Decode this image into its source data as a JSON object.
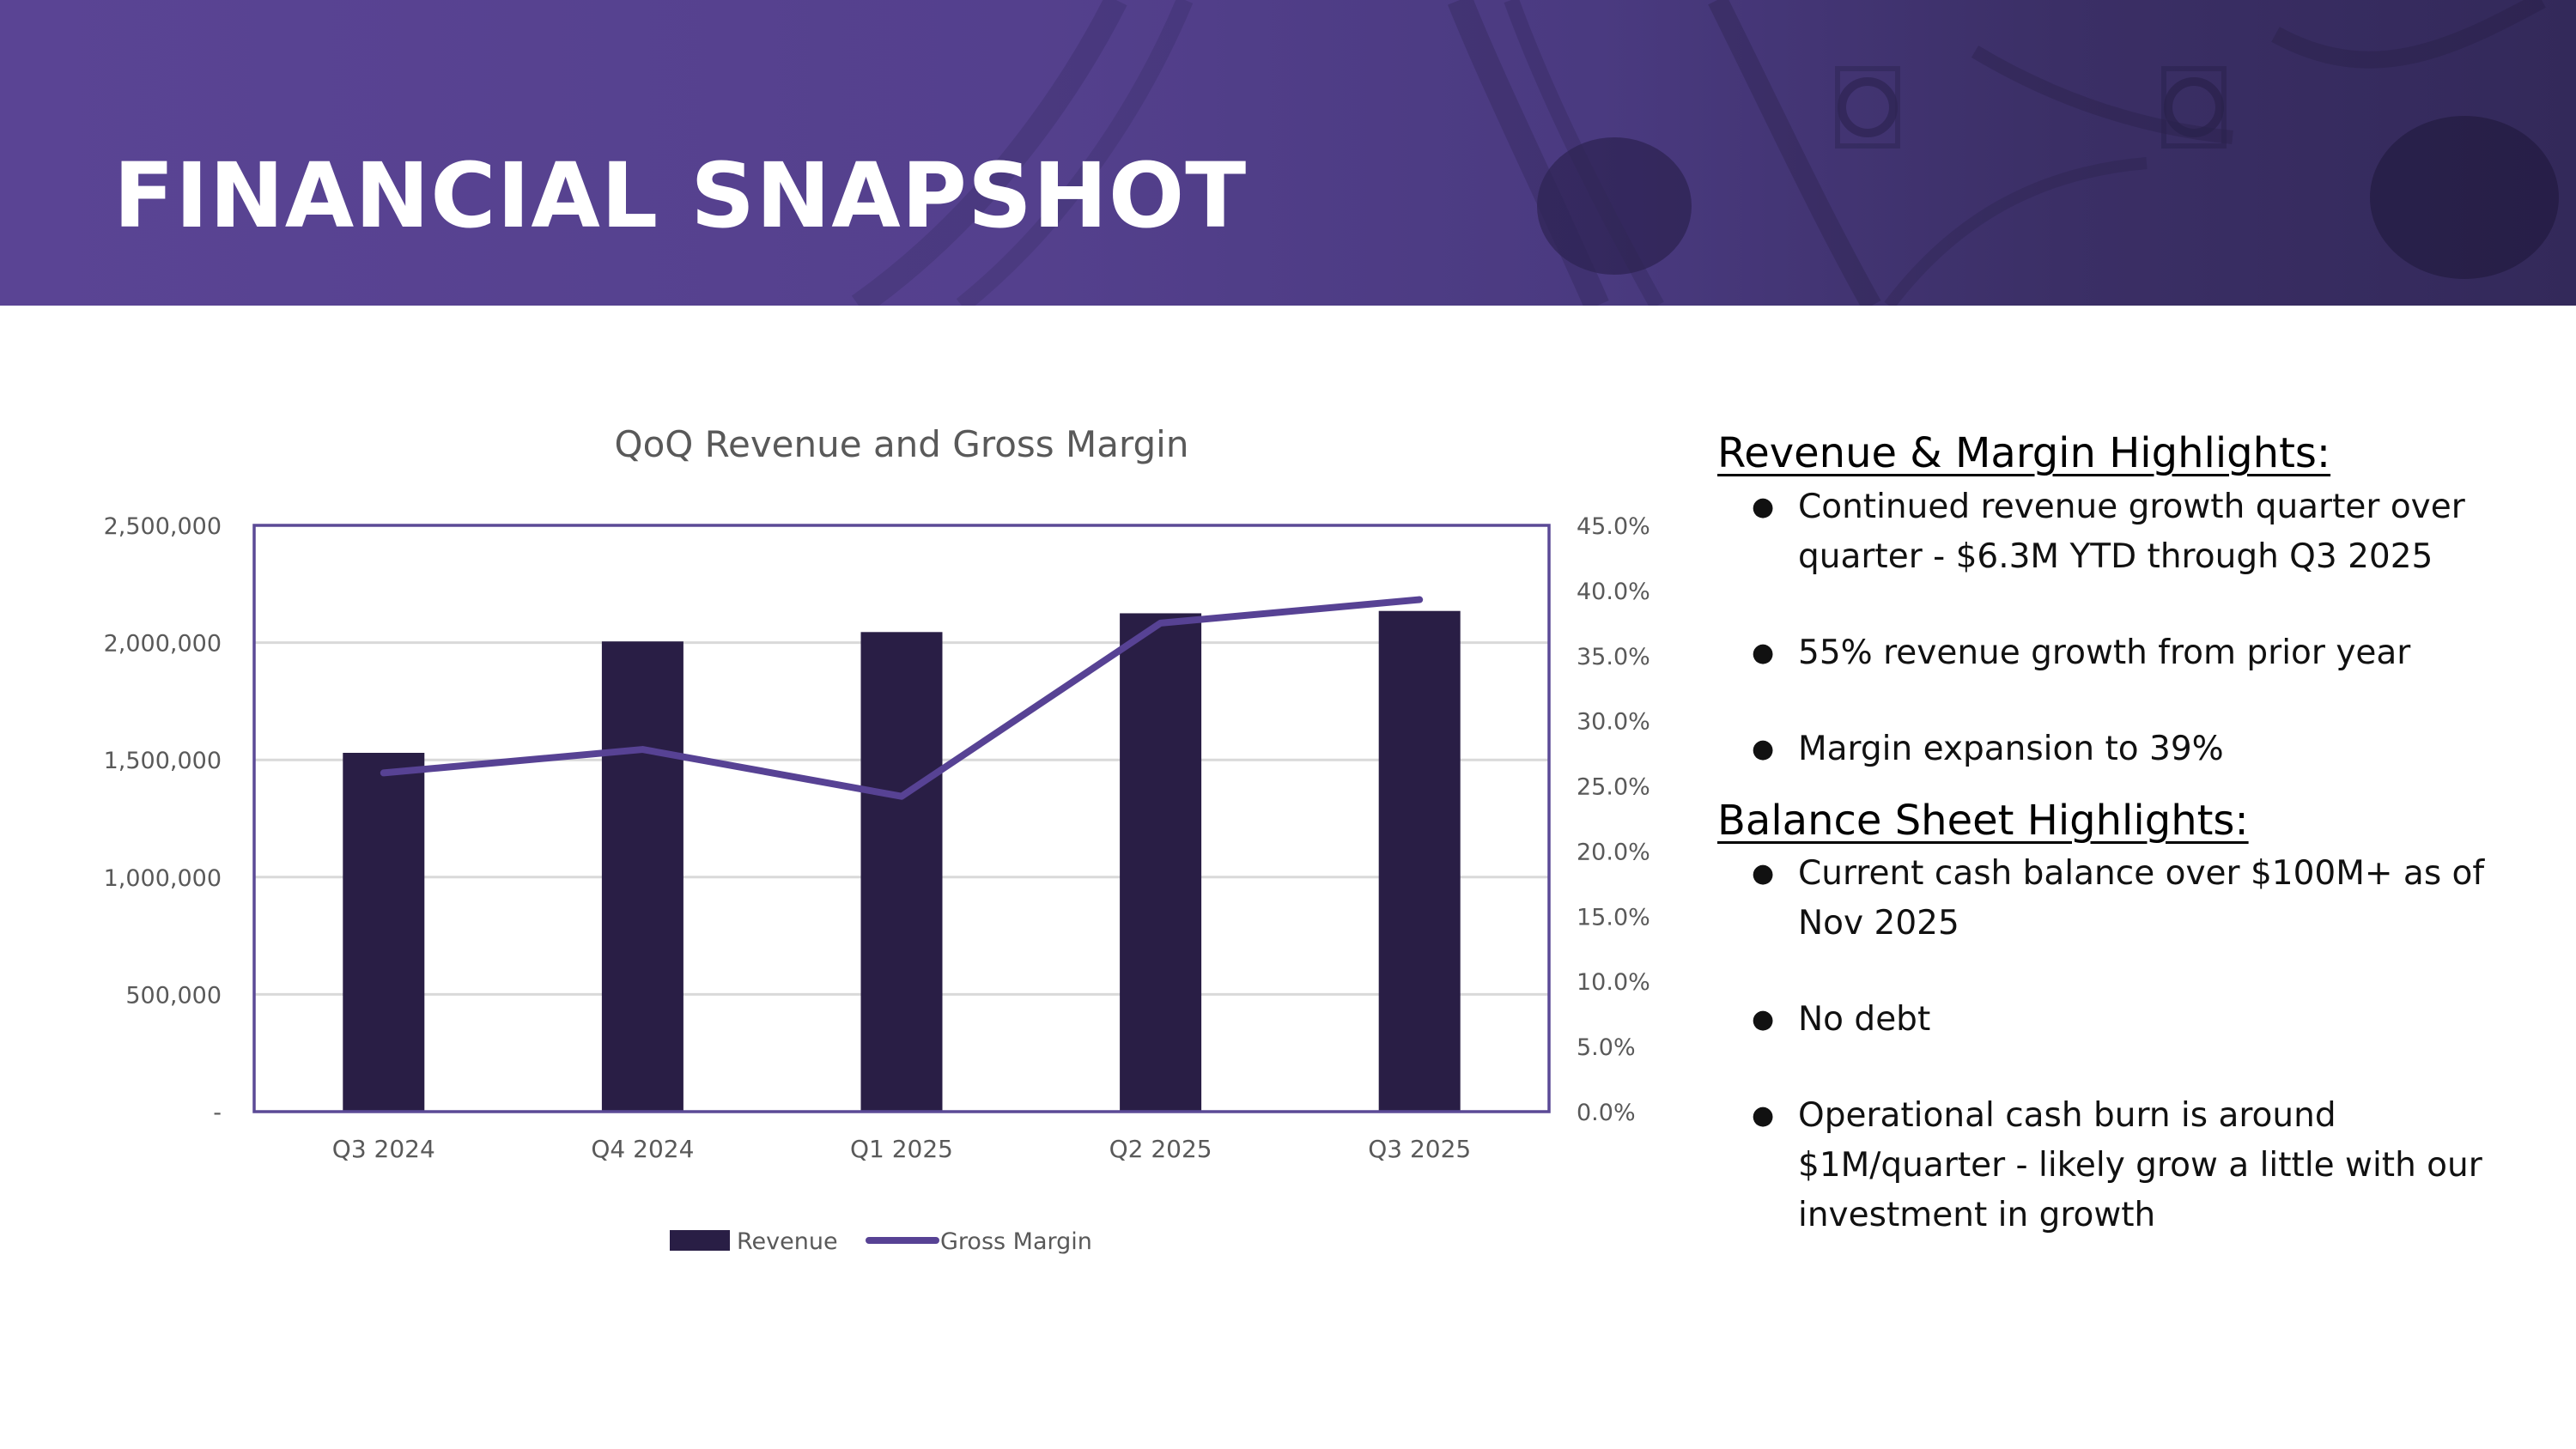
{
  "page": {
    "title": "FINANCIAL SNAPSHOT"
  },
  "highlights": {
    "revenue_margin": {
      "heading": "Revenue & Margin Highlights:",
      "bullets": [
        "Continued revenue growth quarter over quarter - $6.3M YTD through Q3 2025",
        "55% revenue growth from prior year",
        "Margin expansion to 39%"
      ]
    },
    "balance_sheet": {
      "heading": "Balance Sheet Highlights:",
      "bullets": [
        "Current cash balance over $100M+ as of Nov 2025",
        "No debt",
        "Operational cash burn is around $1M/quarter - likely grow a little with our investment in growth"
      ]
    },
    "bullet_glyph": "●"
  },
  "chart_data": {
    "type": "bar",
    "title": "QoQ Revenue and Gross Margin",
    "categories": [
      "Q3 2024",
      "Q4 2024",
      "Q1 2025",
      "Q2 2025",
      "Q3 2025"
    ],
    "series": [
      {
        "name": "Revenue",
        "type": "bar",
        "axis": "left",
        "values": [
          1530000,
          2005000,
          2045000,
          2125000,
          2135000
        ],
        "color": "#291e45"
      },
      {
        "name": "Gross Margin",
        "type": "line",
        "axis": "right",
        "values": [
          26.0,
          27.8,
          24.2,
          37.5,
          39.3
        ],
        "color": "#574294"
      }
    ],
    "y_left": {
      "min": 0,
      "max": 2500000,
      "ticks": [
        0,
        500000,
        1000000,
        1500000,
        2000000,
        2500000
      ],
      "tick_labels": [
        "-",
        "500,000",
        "1,000,000",
        "1,500,000",
        "2,000,000",
        "2,500,000"
      ]
    },
    "y_right": {
      "min": 0,
      "max": 45,
      "ticks": [
        0,
        5,
        10,
        15,
        20,
        25,
        30,
        35,
        40,
        45
      ],
      "tick_labels": [
        "0.0%",
        "5.0%",
        "10.0%",
        "15.0%",
        "20.0%",
        "25.0%",
        "30.0%",
        "35.0%",
        "40.0%",
        "45.0%"
      ]
    },
    "grid": true,
    "legend": "bottom",
    "frame_color": "#5b4a96"
  }
}
